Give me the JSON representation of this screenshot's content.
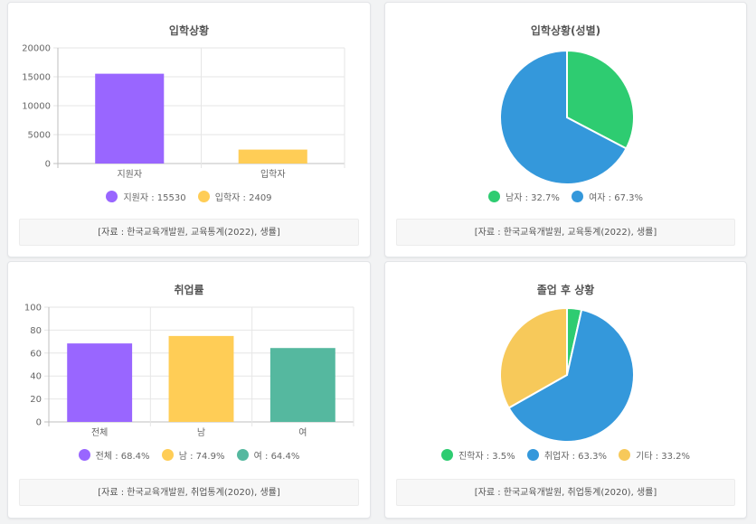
{
  "cards": [
    {
      "title": "입학상황",
      "legend": [
        {
          "label": "지원자 : 15530",
          "color": "#9966ff"
        },
        {
          "label": "입학자 : 2409",
          "color": "#ffcd56"
        }
      ],
      "source": "[자료 : 한국교육개발원, 교육통계(2022), 생률]"
    },
    {
      "title": "입학상황(성별)",
      "legend": [
        {
          "label": "남자 : 32.7%",
          "color": "#2ecc71"
        },
        {
          "label": "여자 : 67.3%",
          "color": "#3498db"
        }
      ],
      "source": "[자료 : 한국교육개발원, 교육통계(2022), 생률]"
    },
    {
      "title": "취업률",
      "legend": [
        {
          "label": "전체 : 68.4%",
          "color": "#9966ff"
        },
        {
          "label": "남 : 74.9%",
          "color": "#ffcd56"
        },
        {
          "label": "여 : 64.4%",
          "color": "#55b89f"
        }
      ],
      "source": "[자료 : 한국교육개발원, 취업통계(2020), 생률]"
    },
    {
      "title": "졸업 후 상황",
      "legend": [
        {
          "label": "진학자 : 3.5%",
          "color": "#2ecc71"
        },
        {
          "label": "취업자 : 63.3%",
          "color": "#3498db"
        },
        {
          "label": "기타 : 33.2%",
          "color": "#f7c95a"
        }
      ],
      "source": "[자료 : 한국교육개발원, 취업통계(2020), 생률]"
    }
  ],
  "chart_data": [
    {
      "type": "bar",
      "title": "입학상황",
      "categories": [
        "지원자",
        "입학자"
      ],
      "values": [
        15530,
        2409
      ],
      "colors": [
        "#9966ff",
        "#ffcd56"
      ],
      "ylim": [
        0,
        20000
      ],
      "yticks": [
        0,
        5000,
        10000,
        15000,
        20000
      ],
      "grid": true
    },
    {
      "type": "pie",
      "title": "입학상황(성별)",
      "categories": [
        "남자",
        "여자"
      ],
      "values": [
        32.7,
        67.3
      ],
      "colors": [
        "#2ecc71",
        "#3498db"
      ]
    },
    {
      "type": "bar",
      "title": "취업률",
      "categories": [
        "전체",
        "남",
        "여"
      ],
      "values": [
        68.4,
        74.9,
        64.4
      ],
      "colors": [
        "#9966ff",
        "#ffcd56",
        "#55b89f"
      ],
      "ylim": [
        0,
        100
      ],
      "yticks": [
        0,
        20,
        40,
        60,
        80,
        100
      ],
      "grid": true
    },
    {
      "type": "pie",
      "title": "졸업 후 상황",
      "categories": [
        "진학자",
        "취업자",
        "기타"
      ],
      "values": [
        3.5,
        63.3,
        33.2
      ],
      "colors": [
        "#2ecc71",
        "#3498db",
        "#f7c95a"
      ]
    }
  ]
}
